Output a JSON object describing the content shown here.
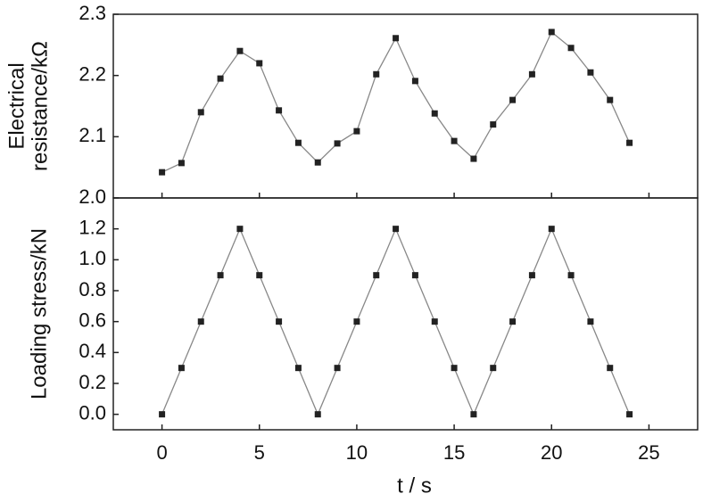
{
  "chart_data": [
    {
      "type": "line",
      "ylabel": [
        "Electrical",
        "resistance/kΩ"
      ],
      "x": [
        0,
        1,
        2,
        3,
        4,
        5,
        6,
        7,
        8,
        9,
        10,
        11,
        12,
        13,
        14,
        15,
        16,
        17,
        18,
        19,
        20,
        21,
        22,
        23,
        24
      ],
      "series": [
        {
          "color": "#222222",
          "line_color": "#888888",
          "values": [
            2.042,
            2.057,
            2.14,
            2.195,
            2.24,
            2.22,
            2.143,
            2.09,
            2.058,
            2.089,
            2.109,
            2.202,
            2.261,
            2.191,
            2.138,
            2.093,
            2.064,
            2.12,
            2.16,
            2.202,
            2.271,
            2.245,
            2.205,
            2.16,
            2.09
          ]
        }
      ],
      "xlim": [
        -2.5,
        27.5
      ],
      "ylim": [
        2.0,
        2.3
      ],
      "yticks": [
        {
          "value": 2.0,
          "label": "2.0"
        },
        2.1,
        2.2,
        2.3
      ]
    },
    {
      "type": "line",
      "ylabel": [
        "Loading stress/kN"
      ],
      "xlabel": "t / s",
      "x": [
        0,
        1,
        2,
        3,
        4,
        5,
        6,
        7,
        8,
        9,
        10,
        11,
        12,
        13,
        14,
        15,
        16,
        17,
        18,
        19,
        20,
        21,
        22,
        23,
        24
      ],
      "series": [
        {
          "color": "#222222",
          "line_color": "#888888",
          "values": [
            0,
            0.3,
            0.6,
            0.9,
            1.2,
            0.9,
            0.6,
            0.3,
            0,
            0.3,
            0.6,
            0.9,
            1.2,
            0.9,
            0.6,
            0.3,
            0,
            0.3,
            0.6,
            0.9,
            1.2,
            0.9,
            0.6,
            0.3,
            0
          ]
        }
      ],
      "xlim": [
        -2.5,
        27.5
      ],
      "xticks": [
        0,
        5,
        10,
        15,
        20,
        25
      ],
      "ylim": [
        -0.1,
        1.4
      ],
      "yticks": [
        {
          "value": 0,
          "label": "0.0"
        },
        0.2,
        0.4,
        0.6,
        0.8,
        {
          "value": 1,
          "label": "1.0"
        },
        1.2
      ]
    }
  ]
}
